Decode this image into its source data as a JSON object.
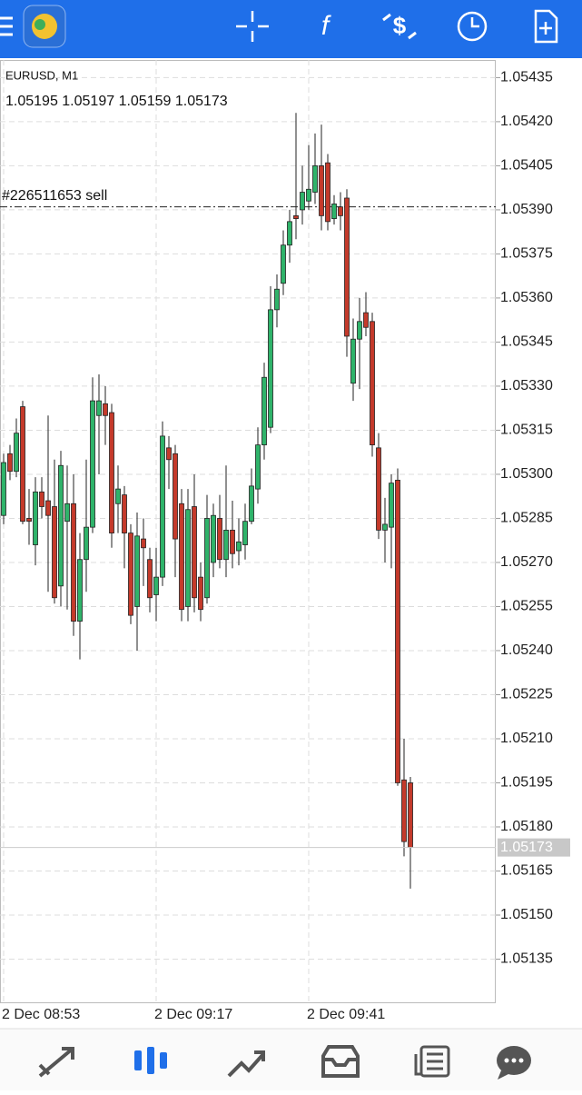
{
  "chart_data": {
    "type": "candlestick",
    "symbol": "EURUSD, M1",
    "ohlc_text": "1.05195 1.05197 1.05159 1.05173",
    "sell_line": {
      "label": "#226511653 sell",
      "value": 1.05391
    },
    "current_price": 1.05173,
    "up_color": "#2fb36a",
    "down_color": "#c43a2b",
    "categories": [
      "2 Dec 08:53",
      null,
      null,
      null,
      null,
      null,
      null,
      null,
      null,
      null,
      null,
      null,
      null,
      null,
      null,
      null,
      null,
      null,
      null,
      null,
      null,
      null,
      null,
      null,
      "2 Dec 09:17",
      null,
      null,
      null,
      null,
      null,
      null,
      null,
      null,
      null,
      null,
      null,
      null,
      null,
      null,
      null,
      null,
      null,
      null,
      null,
      null,
      null,
      null,
      null,
      "2 Dec 09:41",
      null,
      null,
      null,
      null,
      null,
      null,
      null,
      null,
      null,
      null,
      null,
      null,
      null,
      null,
      null,
      null
    ],
    "open": [
      1.05286,
      1.05307,
      1.05301,
      1.05323,
      1.05285,
      1.05276,
      1.05294,
      1.05291,
      1.05289,
      1.05262,
      1.05284,
      1.0529,
      1.0525,
      1.05271,
      1.05282,
      1.0532,
      1.05324,
      1.05321,
      1.0529,
      1.05293,
      1.0528,
      1.05255,
      1.05278,
      1.05271,
      1.05259,
      1.05265,
      1.05309,
      1.05307,
      1.0529,
      1.05255,
      1.05289,
      1.05265,
      1.05258,
      1.0527,
      1.05285,
      1.05271,
      1.05281,
      1.05274,
      1.05276,
      1.05284,
      1.05295,
      1.0531,
      1.05316,
      1.05356,
      1.05365,
      1.05378,
      1.05388,
      1.0539,
      1.05393,
      1.05396,
      1.05405,
      1.05406,
      1.05387,
      1.05391,
      1.05394,
      1.05331,
      1.05346,
      1.05355,
      1.05352,
      1.05309,
      1.05281,
      1.05282,
      1.05298,
      1.05196,
      1.05195
    ],
    "high": [
      1.05307,
      1.0531,
      1.05319,
      1.05325,
      1.05295,
      1.05299,
      1.05299,
      1.0532,
      1.05305,
      1.05308,
      1.05303,
      1.053,
      1.0528,
      1.05305,
      1.05333,
      1.05334,
      1.0533,
      1.05324,
      1.05303,
      1.05296,
      1.05283,
      1.05287,
      1.05285,
      1.05275,
      1.05275,
      1.05318,
      1.05313,
      1.0531,
      1.05295,
      1.05295,
      1.053,
      1.0527,
      1.05293,
      1.0529,
      1.05293,
      1.05303,
      1.05291,
      1.05285,
      1.0529,
      1.05302,
      1.05316,
      1.05338,
      1.05364,
      1.05368,
      1.05383,
      1.0539,
      1.05423,
      1.05405,
      1.05412,
      1.05416,
      1.05419,
      1.05409,
      1.05395,
      1.05396,
      1.05397,
      1.05353,
      1.0536,
      1.05362,
      1.05355,
      1.05314,
      1.05292,
      1.053,
      1.05302,
      1.0521,
      1.05197
    ],
    "low": [
      1.05283,
      1.05298,
      1.05299,
      1.05283,
      1.05276,
      1.05269,
      1.05285,
      1.0526,
      1.05256,
      1.05255,
      1.05254,
      1.05245,
      1.05237,
      1.0526,
      1.0528,
      1.053,
      1.0531,
      1.05275,
      1.0528,
      1.05268,
      1.05249,
      1.0524,
      1.05262,
      1.05253,
      1.0525,
      1.05262,
      1.05295,
      1.05265,
      1.0525,
      1.0525,
      1.05253,
      1.0525,
      1.05256,
      1.05265,
      1.05268,
      1.05265,
      1.05268,
      1.05269,
      1.05271,
      1.05283,
      1.0529,
      1.05305,
      1.05314,
      1.0535,
      1.05361,
      1.05372,
      1.0538,
      1.05385,
      1.0539,
      1.05392,
      1.05383,
      1.05383,
      1.05385,
      1.05383,
      1.0534,
      1.05325,
      1.05329,
      1.05347,
      1.05306,
      1.05278,
      1.0527,
      1.05268,
      1.05194,
      1.0517,
      1.05159
    ],
    "close": [
      1.05304,
      1.05301,
      1.05314,
      1.05284,
      1.05284,
      1.05294,
      1.05289,
      1.05286,
      1.05258,
      1.05303,
      1.0529,
      1.0525,
      1.05271,
      1.05282,
      1.05325,
      1.05325,
      1.0532,
      1.0528,
      1.05295,
      1.0528,
      1.05252,
      1.05279,
      1.05275,
      1.05258,
      1.05265,
      1.05313,
      1.05305,
      1.05278,
      1.05254,
      1.05288,
      1.05258,
      1.05254,
      1.05285,
      1.05286,
      1.05271,
      1.05281,
      1.05273,
      1.05277,
      1.05284,
      1.05296,
      1.0531,
      1.05333,
      1.05356,
      1.05363,
      1.05378,
      1.05386,
      1.05387,
      1.05396,
      1.05397,
      1.05405,
      1.05388,
      1.05386,
      1.05392,
      1.05388,
      1.05347,
      1.05346,
      1.05352,
      1.0535,
      1.0531,
      1.05281,
      1.05283,
      1.05297,
      1.05195,
      1.05175,
      1.05173
    ],
    "ylim": [
      1.0512,
      1.05441
    ],
    "yticks": [
      1.05435,
      {
        "value": 1.0542,
        "label": "1.05420"
      },
      1.05405,
      {
        "value": 1.0539,
        "label": "1.05390"
      },
      1.05375,
      {
        "value": 1.0536,
        "label": "1.05360"
      },
      1.05345,
      {
        "value": 1.0533,
        "label": "1.05330"
      },
      1.05315,
      {
        "value": 1.053,
        "label": "1.05300"
      },
      1.05285,
      {
        "value": 1.0527,
        "label": "1.05270"
      },
      1.05255,
      {
        "value": 1.0524,
        "label": "1.05240"
      },
      1.05225,
      {
        "value": 1.0521,
        "label": "1.05210"
      },
      1.05195,
      {
        "value": 1.0518,
        "label": "1.05180"
      },
      1.05165,
      {
        "value": 1.0515,
        "label": "1.05150"
      },
      1.05135
    ],
    "grid": true
  }
}
